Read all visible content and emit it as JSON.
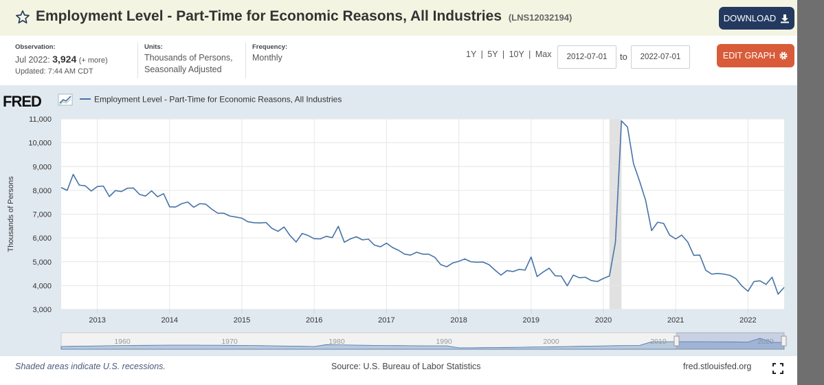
{
  "header": {
    "title": "Employment Level - Part-Time for Economic Reasons, All Industries",
    "series_id": "(LNS12032194)",
    "download_label": "DOWNLOAD"
  },
  "meta": {
    "observation_label": "Observation:",
    "observation_date": "Jul 2022:",
    "observation_value": "3,924",
    "observation_more": "(+ more)",
    "updated": "Updated: 7:44 AM CDT",
    "units_label": "Units:",
    "units_line1": "Thousands of Persons,",
    "units_line2": "Seasonally Adjusted",
    "frequency_label": "Frequency:",
    "frequency_value": "Monthly"
  },
  "controls": {
    "ranges": [
      "1Y",
      "5Y",
      "10Y",
      "Max"
    ],
    "date_from": "2012-07-01",
    "to_label": "to",
    "date_to": "2022-07-01",
    "edit_label": "EDIT GRAPH"
  },
  "logo": "FRED",
  "footer": {
    "note": "Shaded areas indicate U.S. recessions.",
    "source": "Source: U.S. Bureau of Labor Statistics",
    "site": "fred.stlouisfed.org"
  },
  "colors": {
    "line": "#4572a7",
    "chart_bg": "#e1e9f0",
    "recession": "#e1e1e1",
    "download_btn": "#23395f",
    "edit_btn": "#d85c39"
  },
  "chart_data": {
    "type": "line",
    "title": "Employment Level - Part-Time for Economic Reasons, All Industries",
    "legend": "Employment Level - Part-Time for Economic Reasons, All Industries",
    "legend_position": "top-left",
    "ylabel": "Thousands of Persons",
    "xlabel": "",
    "ylim": [
      3000,
      11000
    ],
    "yticks": [
      3000,
      4000,
      5000,
      6000,
      7000,
      8000,
      9000,
      10000,
      11000
    ],
    "ytick_labels": [
      "3,000",
      "4,000",
      "5,000",
      "6,000",
      "7,000",
      "8,000",
      "9,000",
      "10,000",
      "11,000"
    ],
    "xlim": [
      2012.5,
      2022.5
    ],
    "xticks": [
      2013,
      2014,
      2015,
      2016,
      2017,
      2018,
      2019,
      2020,
      2021,
      2022
    ],
    "xtick_labels": [
      "2013",
      "2014",
      "2015",
      "2016",
      "2017",
      "2018",
      "2019",
      "2020",
      "2021",
      "2022"
    ],
    "grid": true,
    "recessions": [
      {
        "start": 2020.083,
        "end": 2020.25
      }
    ],
    "start_year": 2012,
    "start_month": 7,
    "values": [
      8120,
      8000,
      8670,
      8220,
      8190,
      7970,
      8160,
      8180,
      7740,
      7990,
      7950,
      8090,
      8100,
      7830,
      7760,
      7980,
      7730,
      7860,
      7310,
      7300,
      7440,
      7510,
      7290,
      7440,
      7420,
      7210,
      7040,
      7040,
      6920,
      6880,
      6830,
      6680,
      6640,
      6630,
      6650,
      6400,
      6280,
      6460,
      6100,
      5830,
      6190,
      6100,
      5970,
      5960,
      6070,
      6010,
      6490,
      5820,
      5960,
      6050,
      5920,
      5950,
      5700,
      5630,
      5780,
      5600,
      5480,
      5320,
      5280,
      5400,
      5320,
      5320,
      5190,
      4880,
      4790,
      4950,
      5020,
      5120,
      5000,
      4980,
      4990,
      4880,
      4650,
      4440,
      4630,
      4590,
      4680,
      4650,
      5200,
      4380,
      4570,
      4730,
      4410,
      4400,
      3990,
      4440,
      4330,
      4350,
      4210,
      4170,
      4300,
      4400,
      5820,
      10920,
      10660,
      9120,
      8390,
      7590,
      6310,
      6660,
      6610,
      6120,
      5960,
      6120,
      5830,
      5270,
      5280,
      4640,
      4480,
      4510,
      4480,
      4430,
      4290,
      3980,
      3760,
      4170,
      4200,
      4050,
      4350,
      3640,
      3924
    ],
    "overview": {
      "xtick_labels": [
        "1960",
        "1970",
        "1980",
        "1990",
        "2000",
        "2010",
        "2020"
      ]
    }
  }
}
